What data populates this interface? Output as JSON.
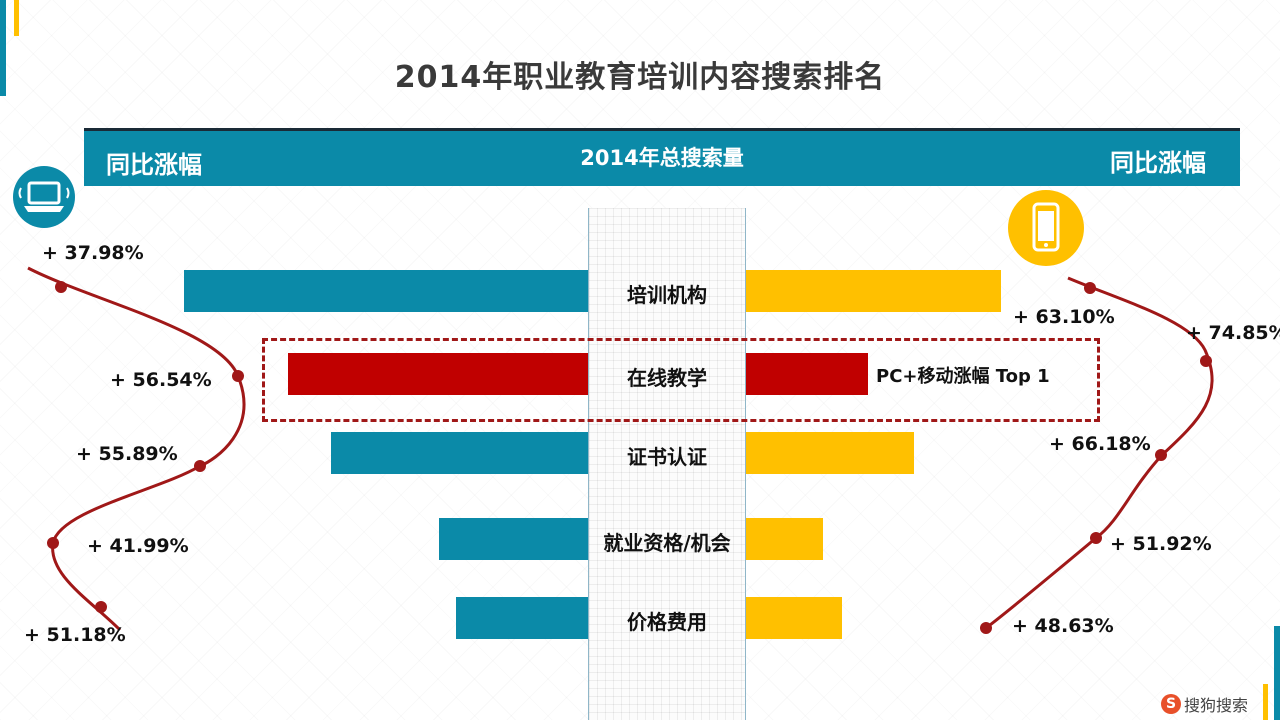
{
  "title": "2014年职业教育培训内容搜索排名",
  "header": {
    "left_label": "同比涨幅",
    "center_label": "2014年总搜索量",
    "right_label": "同比涨幅"
  },
  "icons": {
    "left": "laptop-icon",
    "right": "mobile-phone-icon"
  },
  "highlight_label": "PC+移动涨幅 Top 1",
  "logo_text": "搜狗搜索",
  "logo_letter": "S",
  "colors": {
    "pc": "#0b8aa8",
    "mobile": "#ffc000",
    "highlight": "#c00000",
    "curve": "#a01818"
  },
  "chart_data": {
    "type": "bar",
    "categories": [
      "培训机构",
      "在线教学",
      "证书认证",
      "就业资格/机会",
      "价格费用"
    ],
    "series": [
      {
        "name": "",
        "values": [
          404,
          300,
          257,
          149,
          132
        ]
      },
      {
        "name": "",
        "values": [
          255,
          122,
          168,
          77,
          96
        ]
      }
    ],
    "pc_growth_labels": [
      "+ 37.98%",
      "+ 56.54%",
      "+ 55.89%",
      "+ 41.99%",
      "+ 51.18%"
    ],
    "mobile_growth_labels": [
      "+ 63.10%",
      "+ 74.85%",
      "+ 66.18%",
      "+ 51.92%",
      "+ 48.63%"
    ]
  }
}
